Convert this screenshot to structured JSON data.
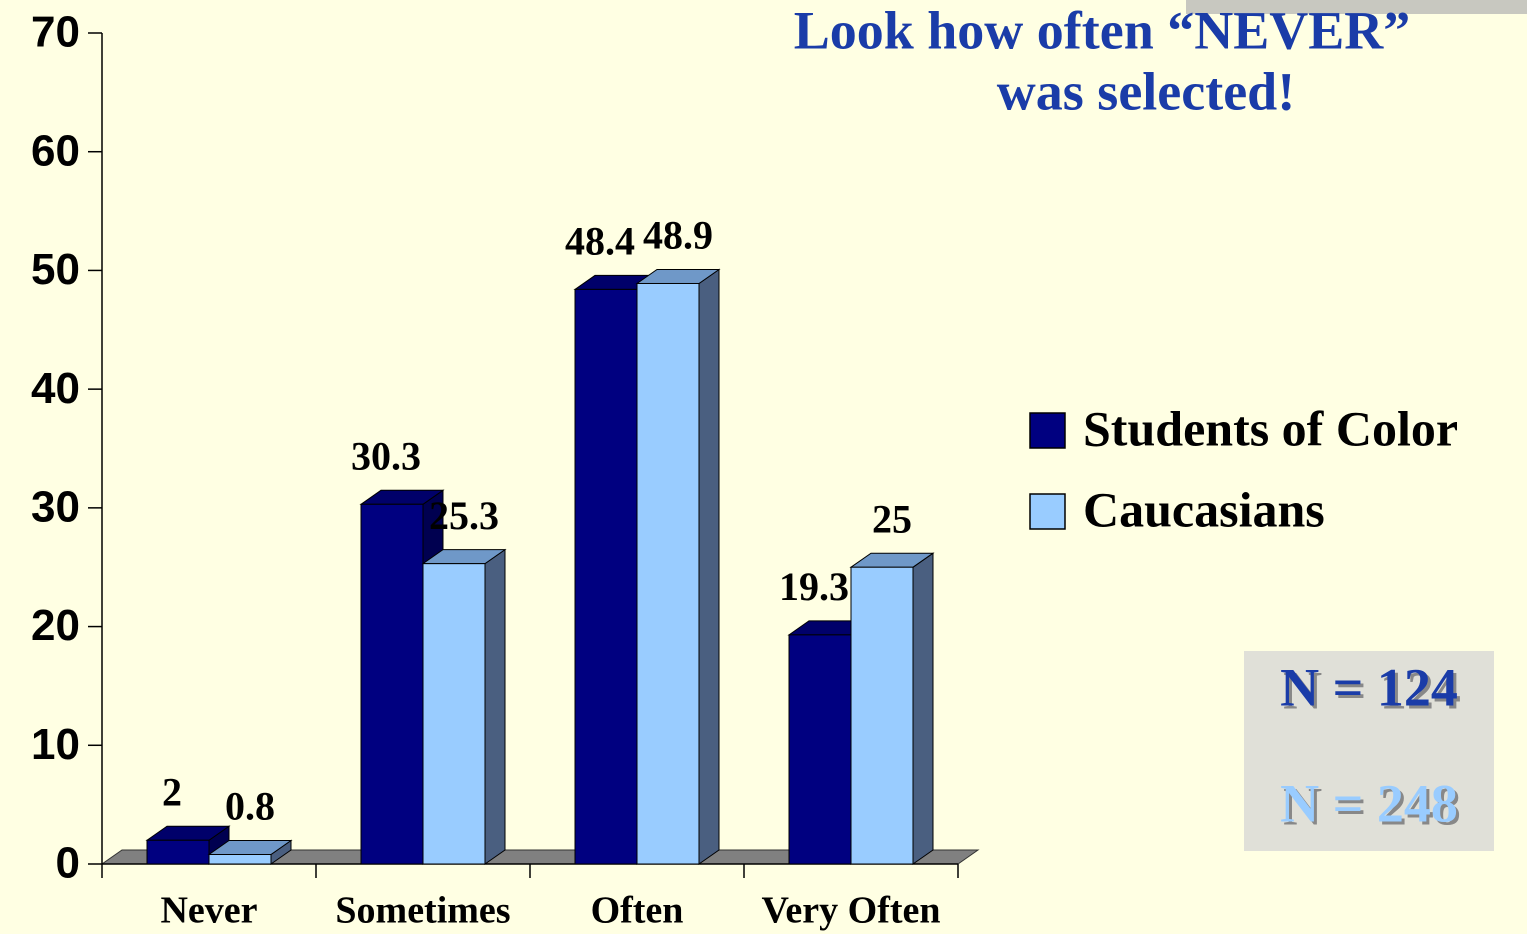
{
  "chart_data": {
    "type": "bar3d",
    "title": [
      "Look how often “NEVER”",
      "was selected!"
    ],
    "categories": [
      "Never",
      "Sometimes",
      "Often",
      "Very Often"
    ],
    "series": [
      {
        "name": "Students of Color",
        "color": "#000080",
        "values": [
          2,
          30.3,
          48.4,
          19.3
        ]
      },
      {
        "name": "Caucasians",
        "color": "#99ccff",
        "values": [
          0.8,
          25.3,
          48.9,
          25
        ]
      }
    ],
    "ylim": [
      0,
      70
    ],
    "yticks": [
      0,
      10,
      20,
      30,
      40,
      50,
      60,
      70
    ],
    "legend": "right",
    "annotations": [
      "N = 124",
      "N = 248"
    ]
  }
}
